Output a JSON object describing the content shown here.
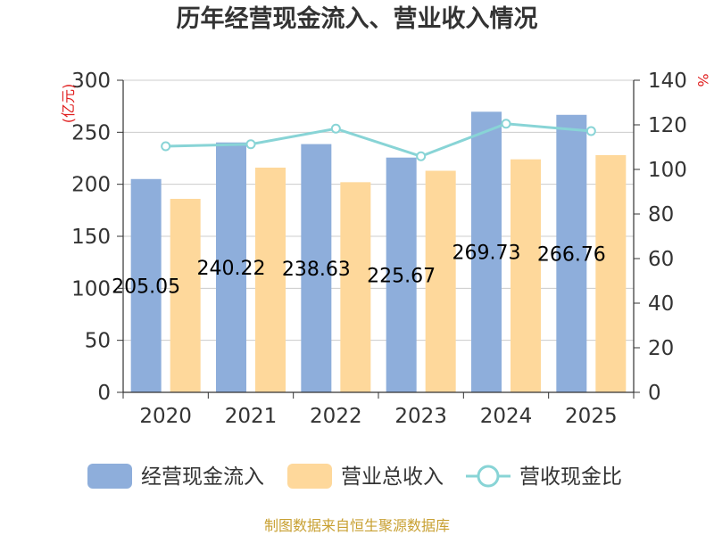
{
  "chart_data": {
    "type": "bar",
    "title": "历年经营现金流入、营业收入情况",
    "categories": [
      "2020",
      "2021",
      "2022",
      "2023",
      "2024",
      "2025"
    ],
    "series": [
      {
        "name": "经营现金流入",
        "type": "bar",
        "axis": "left",
        "color": "#8eaedb",
        "values": [
          205.05,
          240.22,
          238.63,
          225.67,
          269.73,
          266.76
        ],
        "labels": [
          "205.05",
          "240.22",
          "238.63",
          "225.67",
          "269.73",
          "266.76"
        ]
      },
      {
        "name": "营业总收入",
        "type": "bar",
        "axis": "left",
        "color": "#fed89b",
        "values": [
          186,
          216,
          202,
          213,
          224,
          228
        ]
      },
      {
        "name": "营收现金比",
        "type": "line",
        "axis": "right",
        "color": "#88d4d6",
        "values": [
          110.4,
          111.3,
          118.3,
          105.9,
          120.5,
          117.2
        ]
      }
    ],
    "ylabel": "(亿元)",
    "y2label": "%",
    "ylim": [
      0,
      300
    ],
    "y2lim": [
      0,
      140
    ],
    "yticks": [
      0,
      50,
      100,
      150,
      200,
      250,
      300
    ],
    "y2ticks": [
      0,
      20,
      40,
      60,
      80,
      100,
      120,
      140
    ],
    "grid": true,
    "legend": "bottom"
  },
  "source_text": "制图数据来自恒生聚源数据库"
}
